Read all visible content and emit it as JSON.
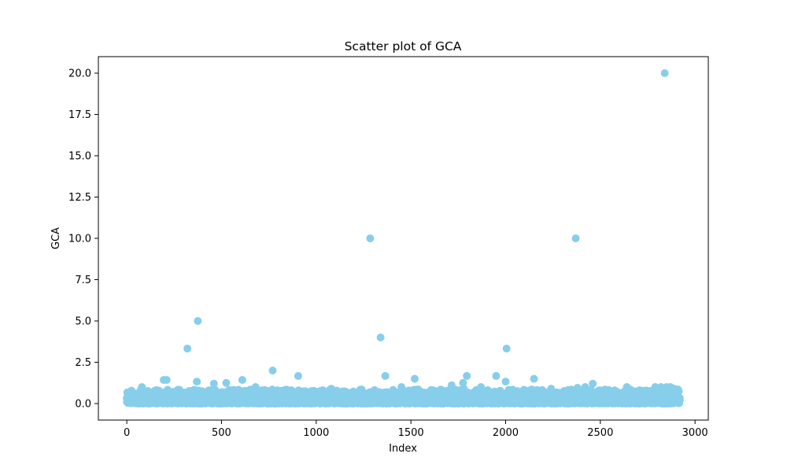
{
  "chart_data": {
    "type": "scatter",
    "title": "Scatter plot of GCA",
    "xlabel": "Index",
    "ylabel": "GCA",
    "xlim": [
      -150,
      3070
    ],
    "ylim": [
      -1.0,
      21.0
    ],
    "x_ticks": [
      0,
      500,
      1000,
      1500,
      2000,
      2500,
      3000
    ],
    "x_tick_labels": [
      "0",
      "500",
      "1000",
      "1500",
      "2000",
      "2500",
      "3000"
    ],
    "y_ticks": [
      0.0,
      2.5,
      5.0,
      7.5,
      10.0,
      12.5,
      15.0,
      17.5,
      20.0
    ],
    "y_tick_labels": [
      "0.0",
      "2.5",
      "5.0",
      "7.5",
      "10.0",
      "12.5",
      "15.0",
      "17.5",
      "20.0"
    ],
    "marker_color": "#87CEEB",
    "grid": false,
    "legend": "none",
    "series": [
      {
        "x": [
          320,
          375,
          1285,
          1340,
          2005,
          2370,
          2840,
          770,
          905,
          1365,
          1520,
          1795,
          1950,
          2150,
          195,
          210,
          370,
          460,
          525,
          610,
          80,
          1715,
          1775,
          2460,
          2640,
          2000,
          2420,
          1450,
          1870,
          2790,
          2820,
          2850,
          2870,
          2890,
          2900,
          2910,
          1080,
          1620,
          2240,
          680,
          1240,
          1780,
          2380
        ],
        "y": [
          3.33,
          5.0,
          10.0,
          4.0,
          3.33,
          10.0,
          20.0,
          2.0,
          1.67,
          1.67,
          1.5,
          1.67,
          1.67,
          1.5,
          1.43,
          1.43,
          1.33,
          1.2,
          1.25,
          1.43,
          1.0,
          1.11,
          1.25,
          1.2,
          1.0,
          1.33,
          1.0,
          1.0,
          1.0,
          1.0,
          1.0,
          1.0,
          1.0,
          0.9,
          0.8,
          0.85,
          0.9,
          0.8,
          0.9,
          1.0,
          0.85,
          0.9,
          0.95
        ]
      }
    ],
    "dense_band": {
      "x_range": [
        0,
        2920
      ],
      "y_range": [
        0.0,
        0.9
      ],
      "count": 2920
    }
  }
}
